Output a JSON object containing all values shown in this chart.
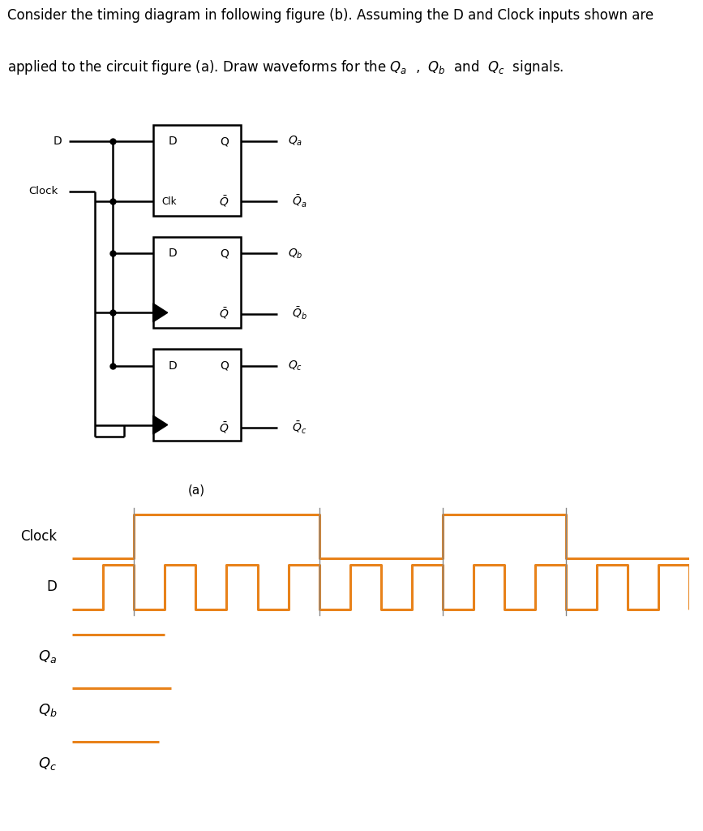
{
  "waveform_color": "#E8821A",
  "text_color": "#000000",
  "bg_color": "#FFFFFF",
  "circuit_box_color": "#000000",
  "vertical_line_color": "#888888",
  "clock_t": [
    0,
    2,
    2,
    8,
    8,
    12,
    12,
    16,
    16,
    20
  ],
  "clock_v": [
    0,
    0,
    1,
    1,
    0,
    0,
    1,
    1,
    0,
    0
  ],
  "d_t": [
    0,
    1,
    1,
    2,
    2,
    3,
    3,
    4,
    4,
    5,
    5,
    6,
    6,
    7,
    7,
    8,
    8,
    9,
    9,
    10,
    10,
    11,
    11,
    12,
    12,
    13,
    13,
    14,
    14,
    15,
    15,
    16,
    16,
    17,
    17,
    18,
    18,
    19,
    19,
    20
  ],
  "d_v": [
    0,
    0,
    1,
    1,
    0,
    0,
    1,
    1,
    0,
    0,
    1,
    1,
    0,
    0,
    1,
    1,
    0,
    0,
    1,
    1,
    0,
    0,
    1,
    1,
    0,
    0,
    1,
    1,
    0,
    0,
    1,
    1,
    0,
    0,
    1,
    1,
    0,
    0,
    1,
    0
  ],
  "qa_t": [
    0,
    3.0
  ],
  "qa_v": [
    1,
    1
  ],
  "qb_t": [
    0,
    3.2
  ],
  "qb_v": [
    1,
    1
  ],
  "qc_t": [
    0,
    2.8
  ],
  "qc_v": [
    1,
    1
  ],
  "vertical_lines": [
    2,
    8,
    12,
    16
  ],
  "xlim": [
    0,
    20
  ]
}
